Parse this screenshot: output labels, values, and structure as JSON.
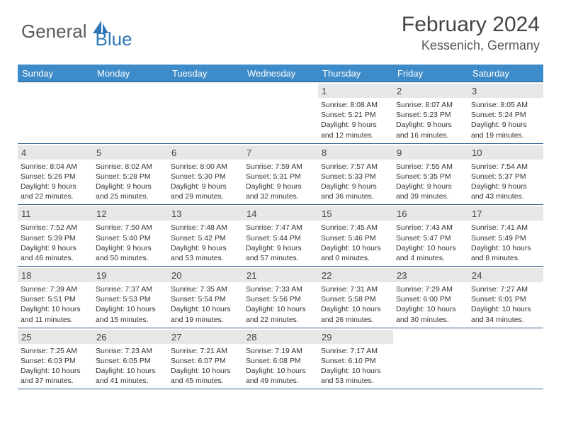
{
  "logo": {
    "word1": "General",
    "word2": "Blue"
  },
  "title": "February 2024",
  "location": "Kessenich, Germany",
  "colors": {
    "header_bg": "#3d8bc9",
    "header_text": "#ffffff",
    "row_border": "#2e5f8a",
    "daynum_bg": "#e7e7e7",
    "daynum_text": "#454545",
    "body_text": "#333333",
    "logo_gray": "#5a5a5a",
    "logo_blue": "#2e77b8"
  },
  "daynames": [
    "Sunday",
    "Monday",
    "Tuesday",
    "Wednesday",
    "Thursday",
    "Friday",
    "Saturday"
  ],
  "weeks": [
    [
      null,
      null,
      null,
      null,
      {
        "n": "1",
        "sr": "8:08 AM",
        "ss": "5:21 PM",
        "d1": "9 hours",
        "d2": "12 minutes"
      },
      {
        "n": "2",
        "sr": "8:07 AM",
        "ss": "5:23 PM",
        "d1": "9 hours",
        "d2": "16 minutes"
      },
      {
        "n": "3",
        "sr": "8:05 AM",
        "ss": "5:24 PM",
        "d1": "9 hours",
        "d2": "19 minutes"
      }
    ],
    [
      {
        "n": "4",
        "sr": "8:04 AM",
        "ss": "5:26 PM",
        "d1": "9 hours",
        "d2": "22 minutes"
      },
      {
        "n": "5",
        "sr": "8:02 AM",
        "ss": "5:28 PM",
        "d1": "9 hours",
        "d2": "25 minutes"
      },
      {
        "n": "6",
        "sr": "8:00 AM",
        "ss": "5:30 PM",
        "d1": "9 hours",
        "d2": "29 minutes"
      },
      {
        "n": "7",
        "sr": "7:59 AM",
        "ss": "5:31 PM",
        "d1": "9 hours",
        "d2": "32 minutes"
      },
      {
        "n": "8",
        "sr": "7:57 AM",
        "ss": "5:33 PM",
        "d1": "9 hours",
        "d2": "36 minutes"
      },
      {
        "n": "9",
        "sr": "7:55 AM",
        "ss": "5:35 PM",
        "d1": "9 hours",
        "d2": "39 minutes"
      },
      {
        "n": "10",
        "sr": "7:54 AM",
        "ss": "5:37 PM",
        "d1": "9 hours",
        "d2": "43 minutes"
      }
    ],
    [
      {
        "n": "11",
        "sr": "7:52 AM",
        "ss": "5:39 PM",
        "d1": "9 hours",
        "d2": "46 minutes"
      },
      {
        "n": "12",
        "sr": "7:50 AM",
        "ss": "5:40 PM",
        "d1": "9 hours",
        "d2": "50 minutes"
      },
      {
        "n": "13",
        "sr": "7:48 AM",
        "ss": "5:42 PM",
        "d1": "9 hours",
        "d2": "53 minutes"
      },
      {
        "n": "14",
        "sr": "7:47 AM",
        "ss": "5:44 PM",
        "d1": "9 hours",
        "d2": "57 minutes"
      },
      {
        "n": "15",
        "sr": "7:45 AM",
        "ss": "5:46 PM",
        "d1": "10 hours",
        "d2": "0 minutes"
      },
      {
        "n": "16",
        "sr": "7:43 AM",
        "ss": "5:47 PM",
        "d1": "10 hours",
        "d2": "4 minutes"
      },
      {
        "n": "17",
        "sr": "7:41 AM",
        "ss": "5:49 PM",
        "d1": "10 hours",
        "d2": "8 minutes"
      }
    ],
    [
      {
        "n": "18",
        "sr": "7:39 AM",
        "ss": "5:51 PM",
        "d1": "10 hours",
        "d2": "11 minutes"
      },
      {
        "n": "19",
        "sr": "7:37 AM",
        "ss": "5:53 PM",
        "d1": "10 hours",
        "d2": "15 minutes"
      },
      {
        "n": "20",
        "sr": "7:35 AM",
        "ss": "5:54 PM",
        "d1": "10 hours",
        "d2": "19 minutes"
      },
      {
        "n": "21",
        "sr": "7:33 AM",
        "ss": "5:56 PM",
        "d1": "10 hours",
        "d2": "22 minutes"
      },
      {
        "n": "22",
        "sr": "7:31 AM",
        "ss": "5:58 PM",
        "d1": "10 hours",
        "d2": "26 minutes"
      },
      {
        "n": "23",
        "sr": "7:29 AM",
        "ss": "6:00 PM",
        "d1": "10 hours",
        "d2": "30 minutes"
      },
      {
        "n": "24",
        "sr": "7:27 AM",
        "ss": "6:01 PM",
        "d1": "10 hours",
        "d2": "34 minutes"
      }
    ],
    [
      {
        "n": "25",
        "sr": "7:25 AM",
        "ss": "6:03 PM",
        "d1": "10 hours",
        "d2": "37 minutes"
      },
      {
        "n": "26",
        "sr": "7:23 AM",
        "ss": "6:05 PM",
        "d1": "10 hours",
        "d2": "41 minutes"
      },
      {
        "n": "27",
        "sr": "7:21 AM",
        "ss": "6:07 PM",
        "d1": "10 hours",
        "d2": "45 minutes"
      },
      {
        "n": "28",
        "sr": "7:19 AM",
        "ss": "6:08 PM",
        "d1": "10 hours",
        "d2": "49 minutes"
      },
      {
        "n": "29",
        "sr": "7:17 AM",
        "ss": "6:10 PM",
        "d1": "10 hours",
        "d2": "53 minutes"
      },
      null,
      null
    ]
  ],
  "labels": {
    "sunrise_prefix": "Sunrise: ",
    "sunset_prefix": "Sunset: ",
    "daylight_prefix": "Daylight: ",
    "and": "and ",
    "period": "."
  }
}
